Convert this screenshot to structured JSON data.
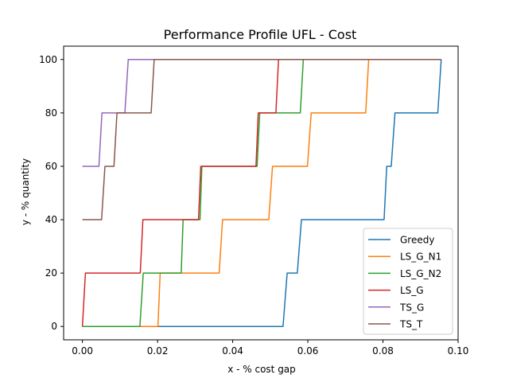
{
  "chart_data": {
    "type": "line",
    "step": true,
    "title": "Performance Profile UFL - Cost",
    "xlabel": "x - % cost gap",
    "ylabel": "y - % quantity",
    "xlim": [
      -0.005,
      0.1
    ],
    "ylim": [
      -5,
      105
    ],
    "xticks": [
      0.0,
      0.02,
      0.04,
      0.06,
      0.08,
      0.1
    ],
    "xtick_labels": [
      "0.00",
      "0.02",
      "0.04",
      "0.06",
      "0.08",
      "0.10"
    ],
    "yticks": [
      0,
      20,
      40,
      60,
      80,
      100
    ],
    "ytick_labels": [
      "0",
      "20",
      "40",
      "60",
      "80",
      "100"
    ],
    "grid": false,
    "legend_position": "lower-right",
    "series": [
      {
        "name": "Greedy",
        "color": "#1f77b4",
        "points": [
          [
            0.0,
            0
          ],
          [
            0.0534,
            0
          ],
          [
            0.0545,
            20
          ],
          [
            0.0572,
            20
          ],
          [
            0.0583,
            40
          ],
          [
            0.0803,
            40
          ],
          [
            0.081,
            60
          ],
          [
            0.0822,
            60
          ],
          [
            0.0832,
            80
          ],
          [
            0.0946,
            80
          ],
          [
            0.0955,
            100
          ]
        ]
      },
      {
        "name": "LS_G_N1",
        "color": "#ff7f0e",
        "points": [
          [
            0.0,
            0
          ],
          [
            0.0201,
            0
          ],
          [
            0.0207,
            20
          ],
          [
            0.0364,
            20
          ],
          [
            0.0373,
            40
          ],
          [
            0.0496,
            40
          ],
          [
            0.0506,
            60
          ],
          [
            0.0599,
            60
          ],
          [
            0.0609,
            80
          ],
          [
            0.0754,
            80
          ],
          [
            0.0762,
            100
          ],
          [
            0.0955,
            100
          ]
        ]
      },
      {
        "name": "LS_G_N2",
        "color": "#2ca02c",
        "points": [
          [
            0.0,
            0
          ],
          [
            0.0153,
            0
          ],
          [
            0.0162,
            20
          ],
          [
            0.0263,
            20
          ],
          [
            0.0268,
            40
          ],
          [
            0.0313,
            40
          ],
          [
            0.0318,
            60
          ],
          [
            0.0465,
            60
          ],
          [
            0.0472,
            80
          ],
          [
            0.058,
            80
          ],
          [
            0.0588,
            100
          ],
          [
            0.0955,
            100
          ]
        ]
      },
      {
        "name": "LS_G",
        "color": "#d62728",
        "points": [
          [
            0.0,
            0
          ],
          [
            0.0008,
            20
          ],
          [
            0.0154,
            20
          ],
          [
            0.0161,
            40
          ],
          [
            0.0309,
            40
          ],
          [
            0.0315,
            60
          ],
          [
            0.0462,
            60
          ],
          [
            0.0468,
            80
          ],
          [
            0.0515,
            80
          ],
          [
            0.0522,
            100
          ],
          [
            0.0955,
            100
          ]
        ]
      },
      {
        "name": "TS_G",
        "color": "#9467bd",
        "points": [
          [
            0.0,
            60
          ],
          [
            0.0044,
            60
          ],
          [
            0.0052,
            80
          ],
          [
            0.0113,
            80
          ],
          [
            0.0122,
            100
          ],
          [
            0.0955,
            100
          ]
        ]
      },
      {
        "name": "TS_T",
        "color": "#8c564b",
        "points": [
          [
            0.0,
            40
          ],
          [
            0.0051,
            40
          ],
          [
            0.006,
            60
          ],
          [
            0.0084,
            60
          ],
          [
            0.0092,
            80
          ],
          [
            0.0183,
            80
          ],
          [
            0.0191,
            100
          ],
          [
            0.0955,
            100
          ]
        ]
      }
    ]
  }
}
